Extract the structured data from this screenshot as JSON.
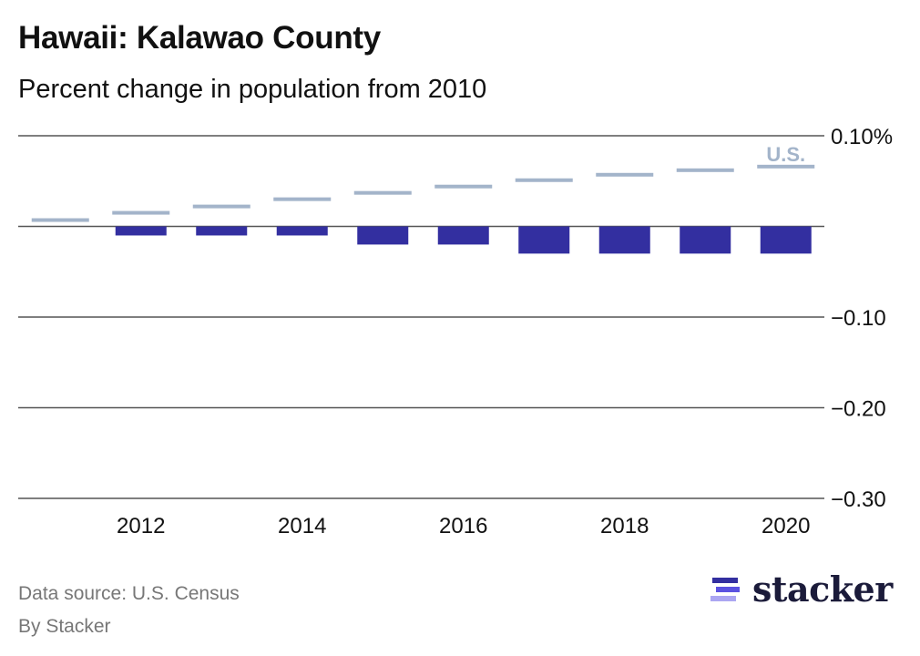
{
  "header": {
    "title": "Hawaii: Kalawao County",
    "subtitle": "Percent change in population from 2010"
  },
  "footer": {
    "source": "Data source: U.S. Census",
    "byline": "By Stacker",
    "logo_text": "stacker"
  },
  "colors": {
    "county_bar": "#332FA0",
    "us_line": "#A3B4CA",
    "grid": "#555555",
    "logo_bar1": "#332FA0",
    "logo_bar2": "#5B52E0",
    "logo_bar3": "#ABA6F2"
  },
  "chart_data": {
    "type": "bar",
    "title": "Hawaii: Kalawao County",
    "subtitle": "Percent change in population from 2010",
    "xlabel": "",
    "ylabel": "",
    "categories": [
      "2011",
      "2012",
      "2013",
      "2014",
      "2015",
      "2016",
      "2017",
      "2018",
      "2019",
      "2020"
    ],
    "x_tick_labels": [
      "2012",
      "2014",
      "2016",
      "2018",
      "2020"
    ],
    "y_ticks": [
      0.1,
      0,
      -0.1,
      -0.2,
      -0.3
    ],
    "y_tick_labels": [
      "0.10%",
      "",
      "−0.10",
      "−0.20",
      "−0.30"
    ],
    "ylim": [
      -0.3,
      0.1
    ],
    "grid": true,
    "series": [
      {
        "name": "Kalawao County",
        "type": "bar",
        "values": [
          0.0,
          -0.01,
          -0.01,
          -0.01,
          -0.02,
          -0.02,
          -0.03,
          -0.03,
          -0.03,
          -0.03
        ]
      },
      {
        "name": "U.S.",
        "type": "step",
        "label": "U.S.",
        "values": [
          0.007,
          0.015,
          0.022,
          0.03,
          0.037,
          0.044,
          0.051,
          0.057,
          0.062,
          0.066
        ]
      }
    ]
  }
}
